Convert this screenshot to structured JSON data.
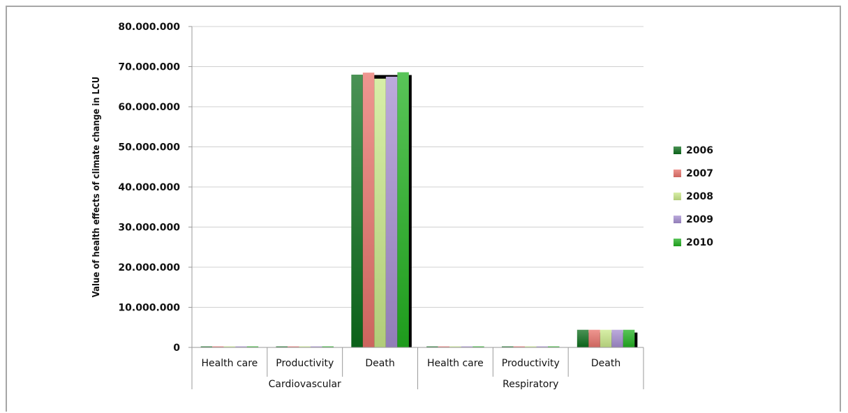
{
  "chart_data": {
    "type": "bar",
    "title": "",
    "ylabel": "Value of health effects of climate change in LCU",
    "xlabel": "",
    "ylim": [
      0,
      80000000
    ],
    "yticks": [
      0,
      10000000,
      20000000,
      30000000,
      40000000,
      50000000,
      60000000,
      70000000,
      80000000
    ],
    "ytick_labels": [
      "0",
      "10.000.000",
      "20.000.000",
      "30.000.000",
      "40.000.000",
      "50.000.000",
      "60.000.000",
      "70.000.000",
      "80.000.000"
    ],
    "grid": true,
    "legend_position": "right",
    "groups": [
      {
        "label": "Cardiovascular",
        "categories": [
          "Health care",
          "Productivity",
          "Death"
        ]
      },
      {
        "label": "Respiratory",
        "categories": [
          "Health care",
          "Productivity",
          "Death"
        ]
      }
    ],
    "categories": [
      "Health care",
      "Productivity",
      "Death",
      "Health care",
      "Productivity",
      "Death"
    ],
    "series": [
      {
        "name": "2006",
        "color": "#0d6e1c",
        "values": [
          150000,
          150000,
          68000000,
          150000,
          150000,
          4400000
        ]
      },
      {
        "name": "2007",
        "color": "#e8736b",
        "values": [
          150000,
          150000,
          68500000,
          150000,
          150000,
          4400000
        ]
      },
      {
        "name": "2008",
        "color": "#c9e88a",
        "values": [
          150000,
          150000,
          67000000,
          150000,
          150000,
          4400000
        ]
      },
      {
        "name": "2009",
        "color": "#a58ed0",
        "values": [
          150000,
          150000,
          67500000,
          150000,
          150000,
          4400000
        ]
      },
      {
        "name": "2010",
        "color": "#22b020",
        "values": [
          150000,
          150000,
          68600000,
          150000,
          150000,
          4400000
        ]
      }
    ]
  }
}
